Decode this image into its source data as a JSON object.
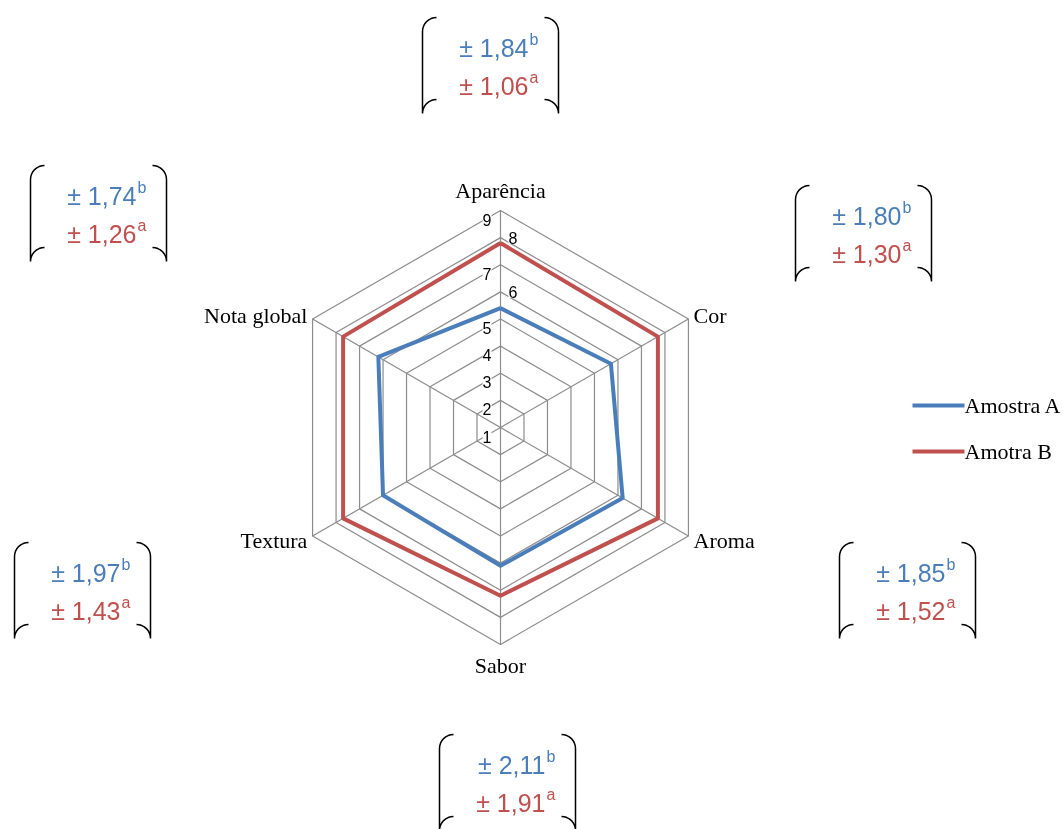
{
  "chart_data": {
    "type": "radar",
    "categories": [
      "Aparência",
      "Cor",
      "Aroma",
      "Sabor",
      "Textura",
      "Nota global"
    ],
    "series": [
      {
        "name": "Amostra A",
        "color": "#4a7ebb",
        "values": [
          5.4,
          5.7,
          6.2,
          6.1,
          6.0,
          6.2
        ]
      },
      {
        "name": "Amotra B",
        "color": "#c0504d",
        "values": [
          7.8,
          7.7,
          7.7,
          7.2,
          7.7,
          7.7
        ]
      }
    ],
    "ylim": [
      1,
      9
    ],
    "yticks": [
      1,
      2,
      3,
      4,
      5,
      6,
      7,
      8,
      9
    ],
    "grid": true,
    "legend": "right",
    "annotations": [
      "± 1,84$^{b}$",
      "± 1,06$^{a}$",
      "± 1,80$^{b}$",
      "± 1,30$^{a}$",
      "± 1,85$^{b}$",
      "± 1,52$^{a}$",
      "± 2,11$^{b}$",
      "± 1,91$^{a}$",
      "± 1,97$^{b}$",
      "± 1,43$^{a}$",
      "± 1,74$^{b}$",
      "± 1,26$^{a}$"
    ]
  }
}
